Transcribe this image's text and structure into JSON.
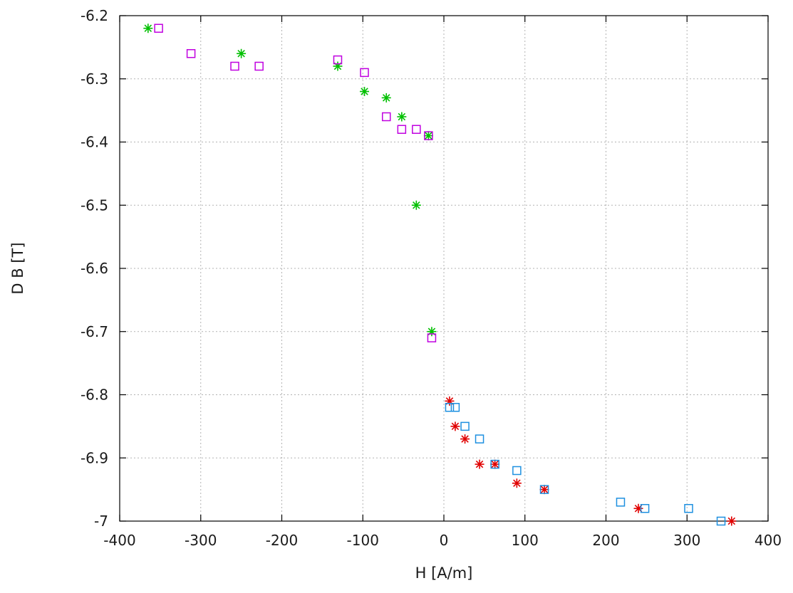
{
  "chart_data": {
    "type": "scatter",
    "title": "",
    "xlabel": "H [A/m]",
    "ylabel": "D B [T]",
    "xlim": [
      -400,
      400
    ],
    "ylim": [
      -7.0,
      -6.2
    ],
    "xticks": [
      -400,
      -300,
      -200,
      -100,
      0,
      100,
      200,
      300,
      400
    ],
    "yticks": [
      -7.0,
      -6.9,
      -6.8,
      -6.7,
      -6.6,
      -6.5,
      -6.4,
      -6.3,
      -6.2
    ],
    "xtick_labels": [
      "-400",
      "-300",
      "-200",
      "-100",
      "0",
      "100",
      "200",
      "300",
      "400"
    ],
    "ytick_labels": [
      "-7",
      "-6.9",
      "-6.8",
      "-6.7",
      "-6.6",
      "-6.5",
      "-6.4",
      "-6.3",
      "-6.2"
    ],
    "grid": true,
    "legend": "none",
    "series": [
      {
        "marker": "asterisk",
        "color": "#00c000",
        "points": [
          [
            -365,
            -6.22
          ],
          [
            -250,
            -6.26
          ],
          [
            -131,
            -6.28
          ],
          [
            -98,
            -6.32
          ],
          [
            -71,
            -6.33
          ],
          [
            -52,
            -6.36
          ],
          [
            -19,
            -6.39
          ],
          [
            -34,
            -6.5
          ],
          [
            -15,
            -6.7
          ]
        ]
      },
      {
        "marker": "square",
        "color": "#c000e0",
        "points": [
          [
            -352,
            -6.22
          ],
          [
            -312,
            -6.26
          ],
          [
            -258,
            -6.28
          ],
          [
            -228,
            -6.28
          ],
          [
            -131,
            -6.27
          ],
          [
            -98,
            -6.29
          ],
          [
            -71,
            -6.36
          ],
          [
            -52,
            -6.38
          ],
          [
            -34,
            -6.38
          ],
          [
            -19,
            -6.39
          ],
          [
            -15,
            -6.71
          ]
        ]
      },
      {
        "marker": "asterisk",
        "color": "#e00000",
        "points": [
          [
            7,
            -6.81
          ],
          [
            14,
            -6.85
          ],
          [
            26,
            -6.87
          ],
          [
            44,
            -6.91
          ],
          [
            63,
            -6.91
          ],
          [
            90,
            -6.94
          ],
          [
            124,
            -6.95
          ],
          [
            240,
            -6.98
          ],
          [
            355,
            -7.0
          ]
        ]
      },
      {
        "marker": "square",
        "color": "#1e90e0",
        "points": [
          [
            7,
            -6.82
          ],
          [
            14,
            -6.82
          ],
          [
            26,
            -6.85
          ],
          [
            44,
            -6.87
          ],
          [
            63,
            -6.91
          ],
          [
            90,
            -6.92
          ],
          [
            124,
            -6.95
          ],
          [
            218,
            -6.97
          ],
          [
            248,
            -6.98
          ],
          [
            302,
            -6.98
          ],
          [
            342,
            -7.0
          ]
        ]
      }
    ]
  }
}
